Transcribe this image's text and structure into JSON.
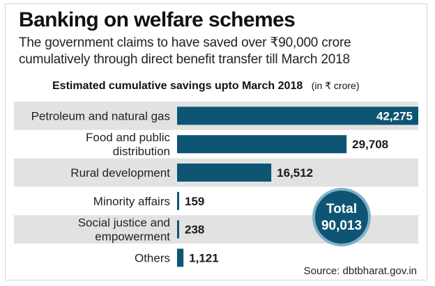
{
  "header": {
    "title": "Banking on welfare schemes",
    "subtitle": "The government claims to have saved over ₹90,000 crore cumulatively through direct benefit transfer till March 2018"
  },
  "chart_data": {
    "type": "bar",
    "orientation": "horizontal",
    "title": "Estimated cumulative savings upto March 2018",
    "unit_label": "(in ₹ crore)",
    "categories": [
      [
        "Petroleum and natural gas"
      ],
      [
        "Food and public",
        "distribution"
      ],
      [
        "Rural development"
      ],
      [
        "Minority affairs"
      ],
      [
        "Social justice and",
        "empowerment"
      ],
      [
        "Others"
      ]
    ],
    "values": [
      42275,
      29708,
      16512,
      159,
      238,
      1121
    ],
    "value_labels": [
      "42,275",
      "29,708",
      "16,512",
      "159",
      "238",
      "1,121"
    ],
    "xlim": [
      0,
      42275
    ],
    "grid": false,
    "bar_color": "#0e5574",
    "row_stripe_color": "#e2e2e2",
    "total": {
      "label": "Total",
      "value": "90,013"
    }
  },
  "source": "Source: dbtbharat.gov.in"
}
